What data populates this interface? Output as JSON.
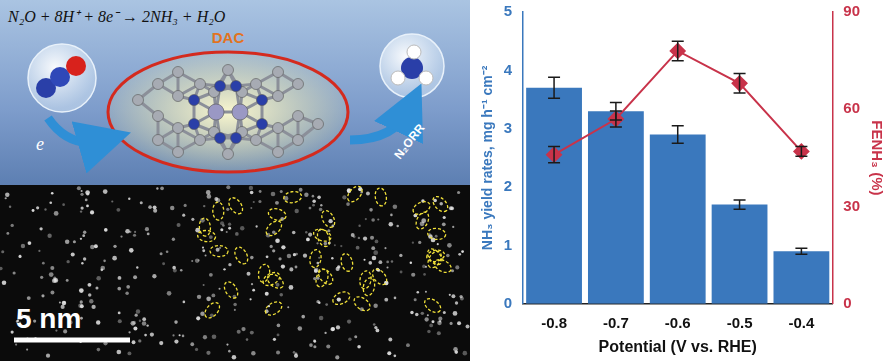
{
  "figure": {
    "schematic": {
      "equation": "N₂O + 8H⁺ + 8e⁻ → 2NH₃ + H₂O",
      "catalyst_label": "DAC",
      "electron_label": "e",
      "reaction_label": "N₂ORR"
    },
    "micrograph": {
      "scale_bar": "5 nm"
    }
  },
  "chart_data": {
    "type": "bar",
    "x_label": "Potential (V vs. RHE)",
    "y_label": "NH₃ yield rates, mg h⁻¹ cm⁻²",
    "y2_label": "FENH₃ (%)",
    "categories": [
      "-0.8",
      "-0.7",
      "-0.6",
      "-0.5",
      "-0.4"
    ],
    "series": [
      {
        "type": "bar",
        "color": "#3a78bd",
        "values": [
          3.7,
          3.3,
          2.9,
          1.7,
          0.9
        ],
        "errors": [
          0.18,
          0.15,
          0.15,
          0.08,
          0.05
        ]
      },
      {
        "type": "line",
        "color": "#c8334a",
        "marker": "diamond",
        "line_style": "solid",
        "axis": "y2",
        "values": [
          46,
          57,
          78,
          68,
          47
        ],
        "errors": [
          2.5,
          2.5,
          3,
          3,
          1.5
        ]
      }
    ],
    "ylim": [
      0,
      5
    ],
    "yticks": [
      0,
      1,
      2,
      3,
      4,
      5
    ],
    "y2lim": [
      0,
      90
    ],
    "y2ticks": [
      0,
      30,
      60,
      90
    ],
    "grid": false
  }
}
